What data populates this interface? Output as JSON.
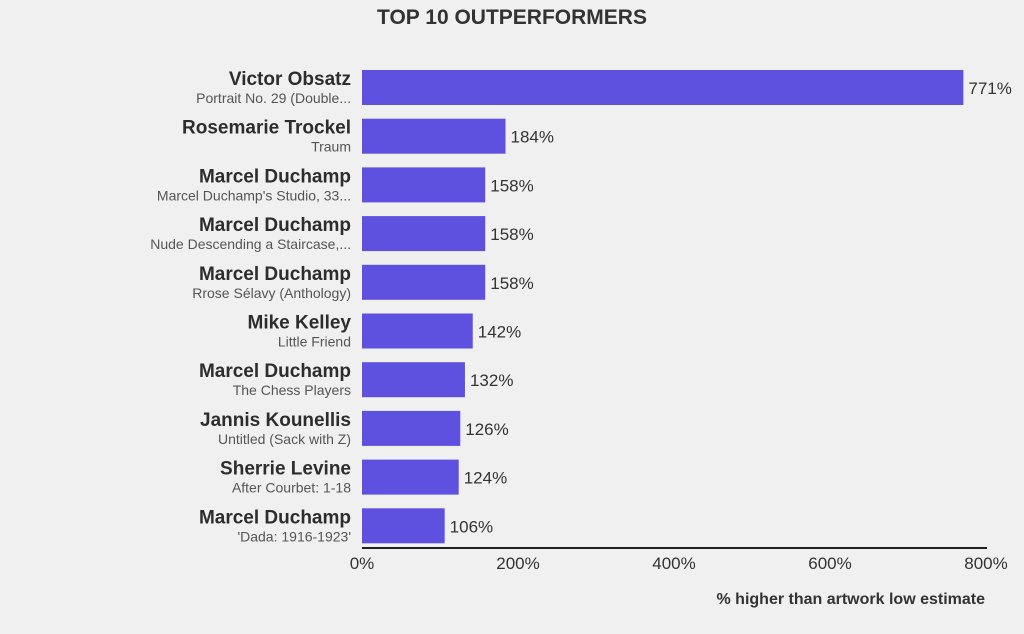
{
  "chart_data": {
    "type": "bar",
    "orientation": "horizontal",
    "title": "TOP 10 OUTPERFORMERS",
    "xlabel": "% higher than artwork low estimate",
    "xlim": [
      0,
      800
    ],
    "xticks": [
      0,
      200,
      400,
      600,
      800
    ],
    "tick_suffix": "%",
    "grid": false,
    "bar_color": "#5f51e0",
    "categories": [
      {
        "artist": "Victor Obsatz",
        "work": "Portrait No. 29 (Double..."
      },
      {
        "artist": "Rosemarie Trockel",
        "work": "Traum"
      },
      {
        "artist": "Marcel Duchamp",
        "work": "Marcel Duchamp's Studio, 33..."
      },
      {
        "artist": "Marcel Duchamp",
        "work": "Nude Descending a Staircase,..."
      },
      {
        "artist": "Marcel Duchamp",
        "work": "Rrose Sélavy (Anthology)"
      },
      {
        "artist": "Mike Kelley",
        "work": "Little Friend"
      },
      {
        "artist": "Marcel Duchamp",
        "work": "The Chess Players"
      },
      {
        "artist": "Jannis Kounellis",
        "work": "Untitled (Sack with Z)"
      },
      {
        "artist": "Sherrie Levine",
        "work": "After Courbet: 1-18"
      },
      {
        "artist": "Marcel Duchamp",
        "work": "'Dada: 1916-1923'"
      }
    ],
    "values": [
      771,
      184,
      158,
      158,
      158,
      142,
      132,
      126,
      124,
      106
    ],
    "value_labels": [
      "771%",
      "184%",
      "158%",
      "158%",
      "158%",
      "142%",
      "132%",
      "126%",
      "124%",
      "106%"
    ]
  }
}
